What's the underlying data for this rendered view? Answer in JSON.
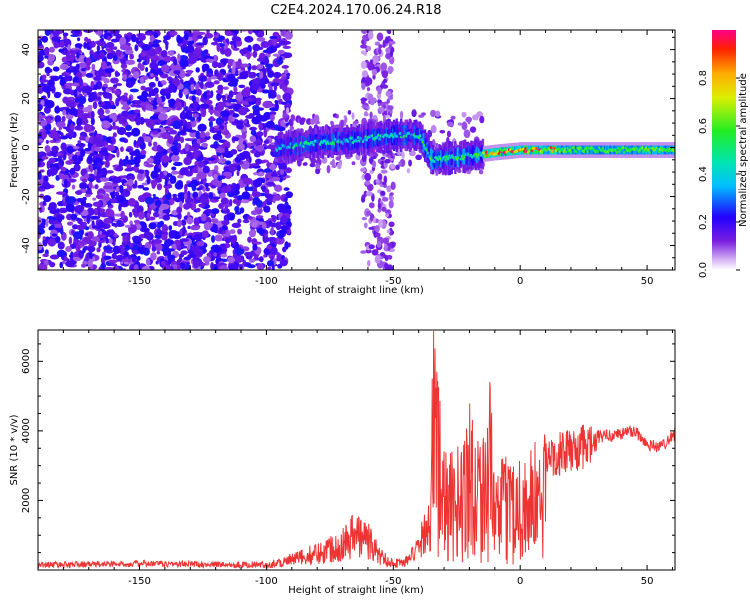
{
  "title": "C2E4.2024.170.06.24.R18",
  "chart_data": [
    {
      "type": "heatmap",
      "xlabel": "Height of straight line (km)",
      "ylabel": "Frequency (Hz)",
      "xlim": [
        -190,
        61
      ],
      "ylim": [
        -50,
        48
      ],
      "xticks": [
        -150,
        -100,
        -50,
        0,
        50
      ],
      "yticks": [
        -40,
        -20,
        0,
        20,
        40
      ],
      "colorbar": {
        "label": "Normalized spectral amplitude",
        "range": [
          0,
          1
        ],
        "ticks": [
          0.0,
          0.2,
          0.4,
          0.6,
          0.8
        ],
        "placement": "right"
      },
      "features": {
        "noise_region_x": [
          -190,
          -95
        ],
        "echo_trace": [
          {
            "x": -95,
            "y": 0
          },
          {
            "x": -80,
            "y": 2
          },
          {
            "x": -65,
            "y": 3
          },
          {
            "x": -50,
            "y": 5
          },
          {
            "x": -40,
            "y": 5
          },
          {
            "x": -35,
            "y": -5
          },
          {
            "x": -25,
            "y": -4
          },
          {
            "x": -10,
            "y": -2
          },
          {
            "x": 0,
            "y": -1
          },
          {
            "x": 20,
            "y": -1
          },
          {
            "x": 40,
            "y": -1
          },
          {
            "x": 61,
            "y": -1
          }
        ],
        "peak_amplitude": 1.0,
        "peak_location_x": [
          -10,
          12
        ]
      }
    },
    {
      "type": "line",
      "xlabel": "Height of straight line (km)",
      "ylabel": "SNR (10 * v/v)",
      "xlim": [
        -190,
        61
      ],
      "ylim": [
        0,
        6900
      ],
      "xticks": [
        -150,
        -100,
        -50,
        0,
        50
      ],
      "yticks": [
        2000,
        4000,
        6000
      ],
      "color": "#ee3333",
      "series": [
        {
          "x": [
            -190,
            -150,
            -100,
            -90,
            -80,
            -70,
            -65,
            -60,
            -55,
            -50,
            -45,
            -40,
            -36,
            -34,
            -32,
            -30,
            -25,
            -20,
            -15,
            -12,
            -10,
            -5,
            0,
            5,
            10,
            15,
            20,
            30,
            40,
            45,
            50,
            55,
            61
          ],
          "y": [
            150,
            180,
            150,
            300,
            500,
            800,
            1100,
            900,
            400,
            200,
            250,
            600,
            1500,
            6800,
            5000,
            3000,
            3000,
            4500,
            3500,
            4800,
            2500,
            3000,
            3000,
            3200,
            3500,
            3600,
            3700,
            3900,
            4000,
            4100,
            3700,
            3600,
            4000
          ]
        }
      ]
    }
  ]
}
